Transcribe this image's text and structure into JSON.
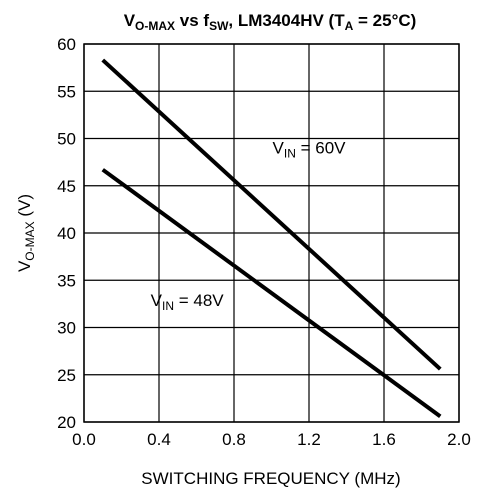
{
  "chart_data": {
    "type": "line",
    "title": {
      "v": "V",
      "v_sub": "O-MAX",
      "mid": " vs f",
      "f_sub": "SW",
      "rest": ", LM3404HV (T",
      "t_sub": "A",
      "end": " = 25°C)"
    },
    "xlabel": "SWITCHING FREQUENCY  (MHz)",
    "ylabel": {
      "main": "V",
      "sub": "O-MAX",
      "unit": " (V)"
    },
    "xlim": [
      0.0,
      2.0
    ],
    "ylim": [
      20,
      60
    ],
    "x_ticks": [
      "0.0",
      "0.4",
      "0.8",
      "1.2",
      "1.6",
      "2.0"
    ],
    "x_tick_values": [
      0.0,
      0.4,
      0.8,
      1.2,
      1.6,
      2.0
    ],
    "y_ticks": [
      "20",
      "25",
      "30",
      "35",
      "40",
      "45",
      "50",
      "55",
      "60"
    ],
    "y_tick_values": [
      20,
      25,
      30,
      35,
      40,
      45,
      50,
      55,
      60
    ],
    "x_grid": [
      0.0,
      0.4,
      0.8,
      1.2,
      1.6,
      2.0
    ],
    "y_grid": [
      20,
      25,
      30,
      35,
      40,
      45,
      50,
      55,
      60
    ],
    "grid": true,
    "series": [
      {
        "x": [
          0.1,
          1.9
        ],
        "y": [
          58.3,
          25.6
        ],
        "color": "#000000"
      },
      {
        "x": [
          0.1,
          1.9
        ],
        "y": [
          46.7,
          20.6
        ],
        "color": "#000000"
      }
    ],
    "annotations": [
      {
        "main": "V",
        "sub": "IN",
        "rest": " = 60V",
        "x": 1.2,
        "y": 48.4
      },
      {
        "main": "V",
        "sub": "IN",
        "rest": " = 48V",
        "x": 0.55,
        "y": 32.3
      }
    ]
  }
}
